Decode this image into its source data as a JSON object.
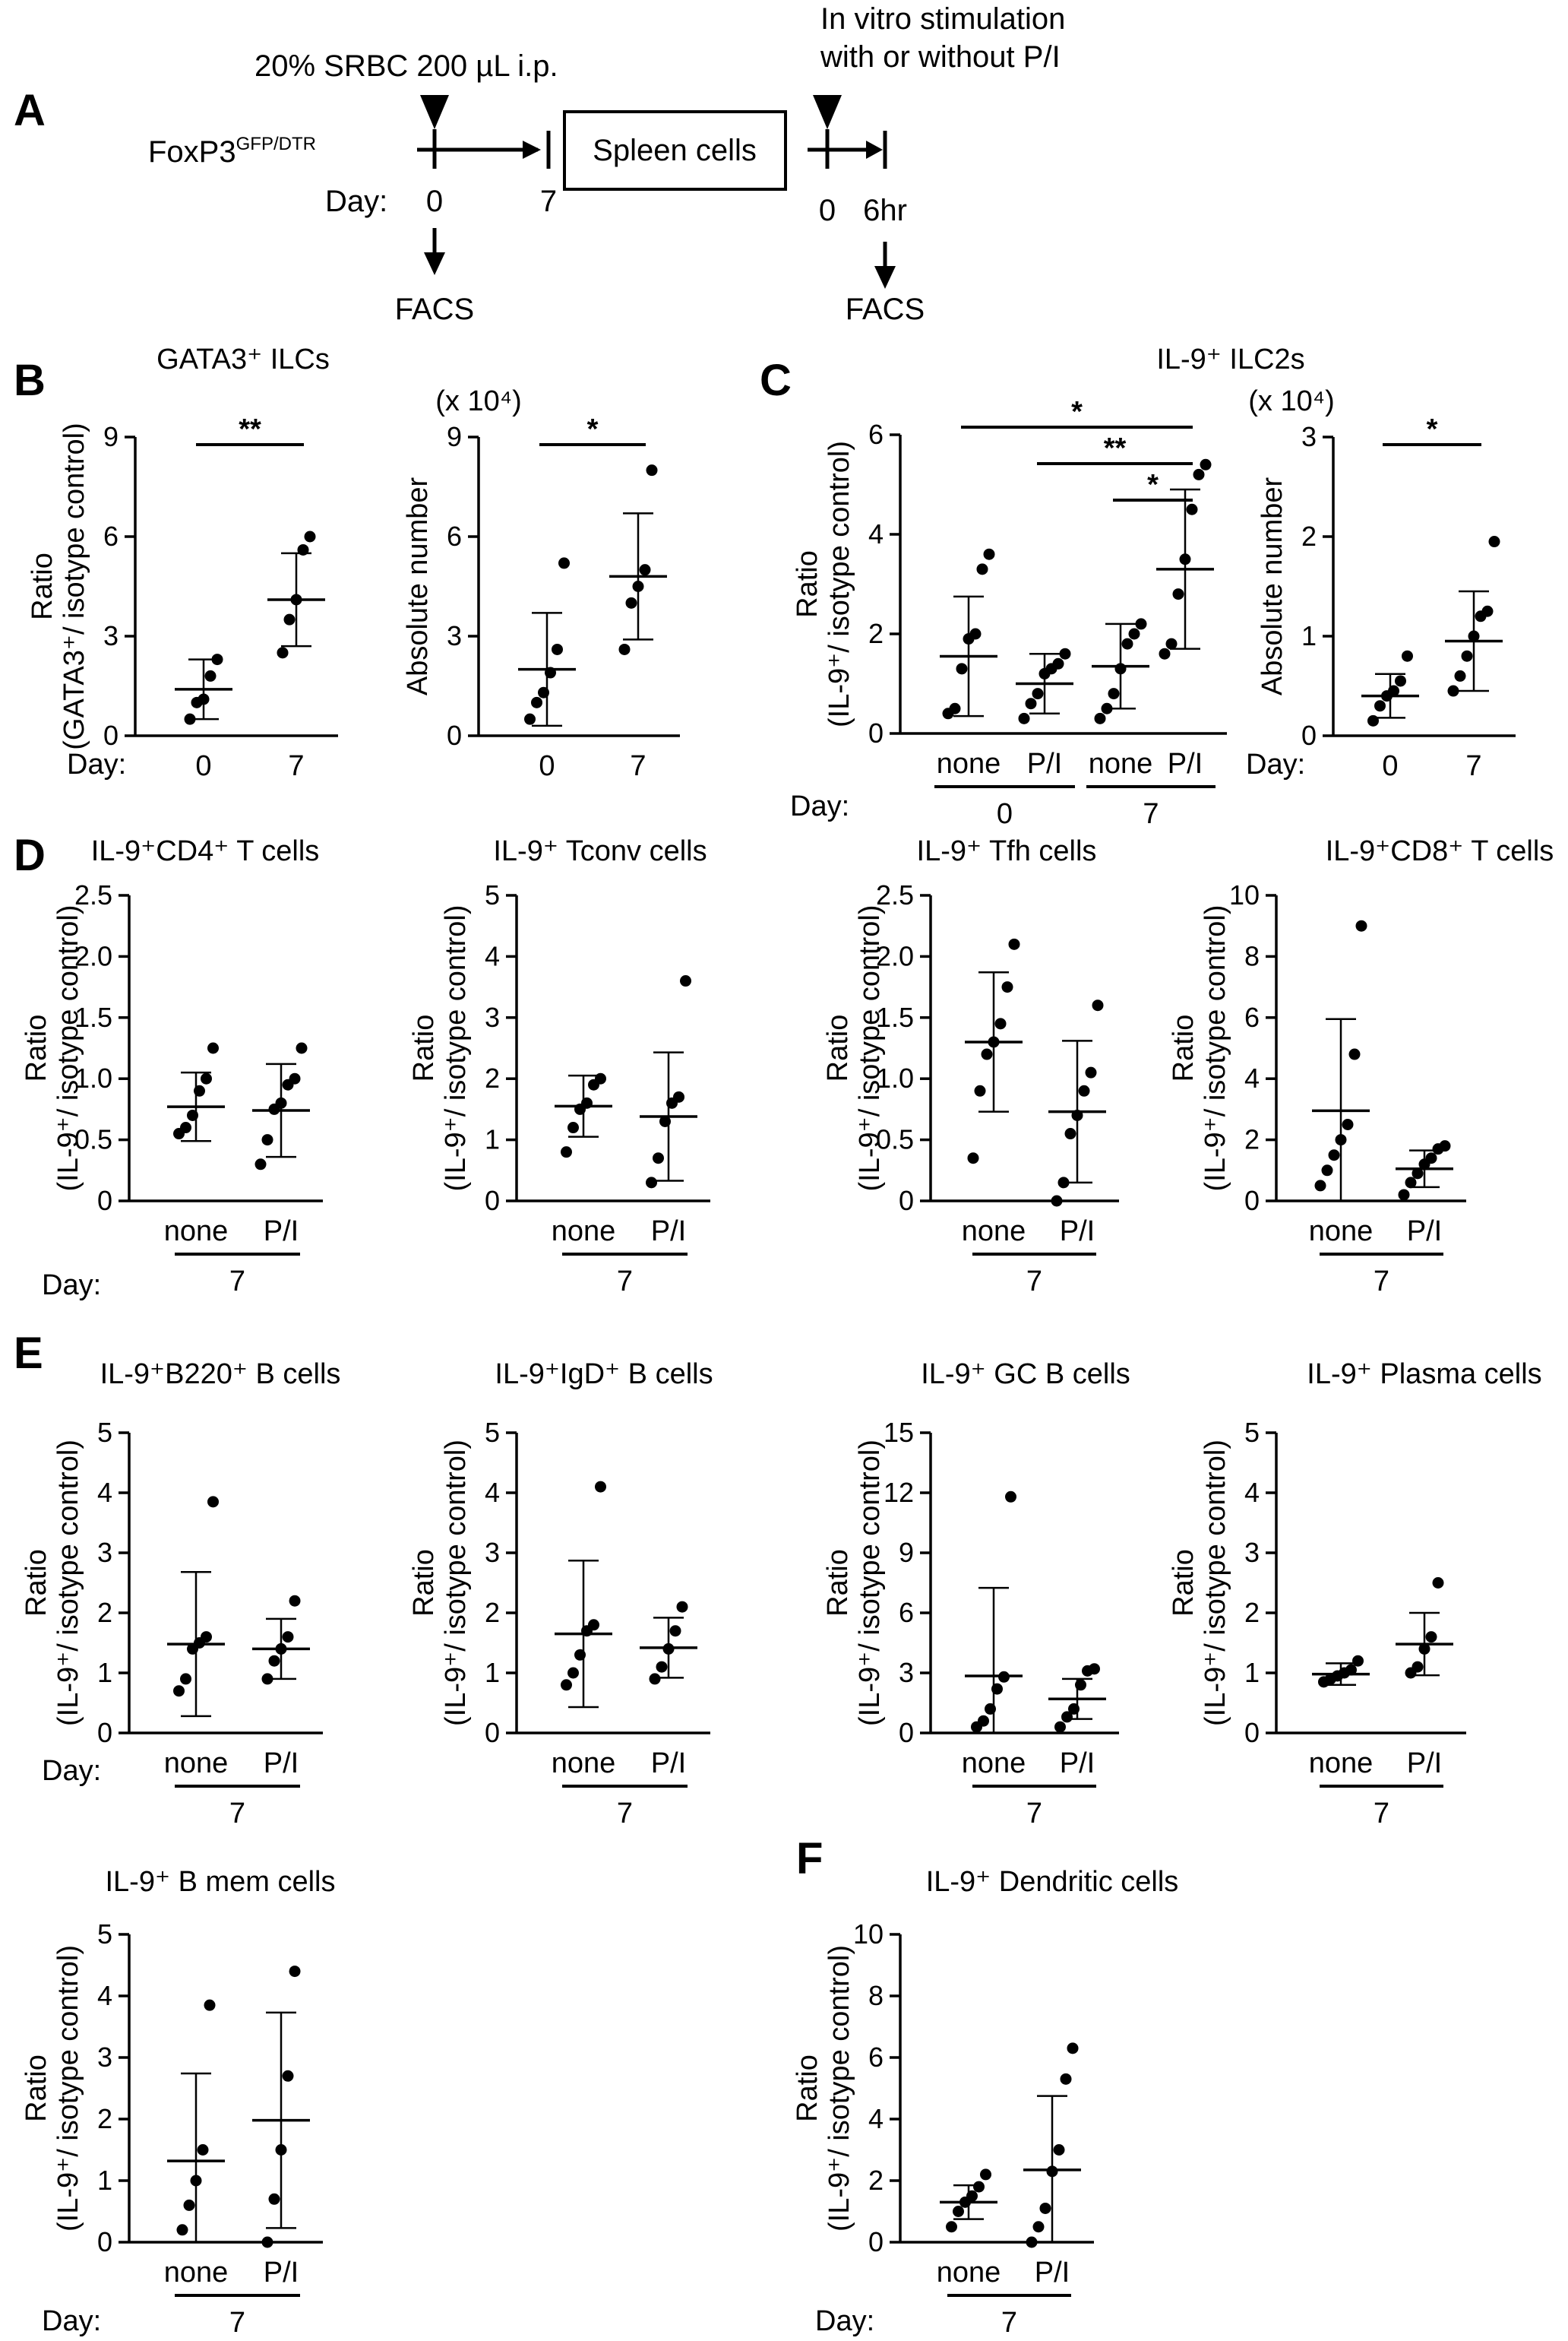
{
  "panel_labels": [
    "A",
    "B",
    "C",
    "D",
    "E",
    "F"
  ],
  "schematic": {
    "injection": "20% SRBC 200 µL i.p.",
    "mouse": "FoxP3",
    "mouse_sup": "GFP/DTR",
    "day_label": "Day:",
    "day_start": "0",
    "day_end": "7",
    "box_label": "Spleen cells",
    "stim_line1": "In vitro stimulation",
    "stim_line2": "with or without P/I",
    "time_start": "0",
    "time_end": "6hr",
    "facs1": "FACS",
    "facs2": "FACS"
  },
  "common": {
    "day_label": "Day:",
    "ratio_word": "Ratio",
    "day7": "7"
  },
  "chart_data": [
    {
      "id": "B1",
      "type": "scatter",
      "title": "GATA3⁺ ILCs",
      "title_shared": true,
      "ylabel": "Ratio",
      "ylabel2": "(GATA3⁺/ isotype control)",
      "ylim": [
        0,
        9
      ],
      "yticks": [
        "0",
        "3",
        "6",
        "9"
      ],
      "categories": [
        "0",
        "7"
      ],
      "points": [
        [
          0.5,
          1.0,
          1.1,
          1.8,
          2.3
        ],
        [
          2.5,
          3.5,
          4.1,
          5.6,
          6.0
        ]
      ],
      "means": [
        1.4,
        4.1
      ],
      "sd": [
        0.9,
        1.4
      ],
      "significance": [
        {
          "from": 0,
          "to": 1,
          "label": "**"
        }
      ]
    },
    {
      "id": "B2",
      "type": "scatter",
      "title": "",
      "multiplier": "(x 10⁴)",
      "ylabel": "Absolute number",
      "ylabel2": "",
      "ylim": [
        0,
        9
      ],
      "yticks": [
        "0",
        "3",
        "6",
        "9"
      ],
      "categories": [
        "0",
        "7"
      ],
      "points": [
        [
          0.5,
          1.0,
          1.3,
          1.9,
          2.6,
          5.2
        ],
        [
          2.6,
          4.0,
          4.5,
          5.0,
          8.0
        ]
      ],
      "means": [
        2.0,
        4.8
      ],
      "sd": [
        1.7,
        1.9
      ],
      "significance": [
        {
          "from": 0,
          "to": 1,
          "label": "*"
        }
      ]
    },
    {
      "id": "C1",
      "type": "scatter",
      "title": "IL-9⁺ ILC2s",
      "ylabel": "Ratio",
      "ylabel2": "(IL-9⁺/ isotype control)",
      "ylim": [
        0,
        6
      ],
      "yticks": [
        "0",
        "2",
        "4",
        "6"
      ],
      "categories": [
        "none",
        "P/I",
        "none",
        "P/I"
      ],
      "groups": [
        {
          "label": "0",
          "from": 0,
          "to": 1
        },
        {
          "label": "7",
          "from": 2,
          "to": 3
        }
      ],
      "points": [
        [
          0.4,
          0.5,
          1.3,
          1.9,
          2.0,
          3.3,
          3.6
        ],
        [
          0.3,
          0.6,
          0.8,
          1.2,
          1.3,
          1.4,
          1.6
        ],
        [
          0.3,
          0.5,
          0.8,
          1.3,
          1.8,
          2.0,
          2.2
        ],
        [
          1.6,
          1.8,
          2.8,
          3.5,
          4.5,
          5.2,
          5.4
        ]
      ],
      "means": [
        1.55,
        1.0,
        1.35,
        3.3
      ],
      "sd": [
        1.2,
        0.6,
        0.85,
        1.6
      ],
      "significance": [
        {
          "from": 0,
          "to": 3,
          "label": "*"
        },
        {
          "from": 1,
          "to": 3,
          "label": "**"
        },
        {
          "from": 2,
          "to": 3,
          "label": "*"
        }
      ]
    },
    {
      "id": "C2",
      "type": "scatter",
      "title": "",
      "multiplier": "(x 10⁴)",
      "ylabel": "Absolute number",
      "ylabel2": "",
      "ylim": [
        0,
        3
      ],
      "yticks": [
        "0",
        "1",
        "2",
        "3"
      ],
      "categories": [
        "0",
        "7"
      ],
      "points": [
        [
          0.15,
          0.3,
          0.4,
          0.45,
          0.55,
          0.8
        ],
        [
          0.45,
          0.6,
          0.8,
          1.0,
          1.2,
          1.25,
          1.95
        ]
      ],
      "means": [
        0.4,
        0.95
      ],
      "sd": [
        0.22,
        0.5
      ],
      "significance": [
        {
          "from": 0,
          "to": 1,
          "label": "*"
        }
      ]
    },
    {
      "id": "D1",
      "type": "scatter",
      "title": "IL-9⁺CD4⁺ T cells",
      "ylabel": "Ratio",
      "ylabel2": "(IL-9⁺/ isotype control)",
      "ylim": [
        0,
        2.5
      ],
      "yticks": [
        "0",
        "0.5",
        "1.0",
        "1.5",
        "2.0",
        "2.5"
      ],
      "categories": [
        "none",
        "P/I"
      ],
      "points": [
        [
          0.55,
          0.6,
          0.7,
          0.9,
          1.0,
          1.25
        ],
        [
          0.3,
          0.5,
          0.75,
          0.8,
          0.95,
          1.0,
          1.25
        ]
      ],
      "means": [
        0.77,
        0.74
      ],
      "sd": [
        0.28,
        0.38
      ]
    },
    {
      "id": "D2",
      "type": "scatter",
      "title": "IL-9⁺ Tconv cells",
      "ylabel": "Ratio",
      "ylabel2": "(IL-9⁺/ isotype control)",
      "ylim": [
        0,
        5
      ],
      "yticks": [
        "0",
        "1",
        "2",
        "3",
        "4",
        "5"
      ],
      "categories": [
        "none",
        "P/I"
      ],
      "points": [
        [
          0.8,
          1.2,
          1.5,
          1.6,
          1.9,
          2.0
        ],
        [
          0.3,
          0.7,
          1.3,
          1.6,
          1.7,
          3.6
        ]
      ],
      "means": [
        1.55,
        1.38
      ],
      "sd": [
        0.5,
        1.05
      ]
    },
    {
      "id": "D3",
      "type": "scatter",
      "title": "IL-9⁺ Tfh cells",
      "ylabel": "Ratio",
      "ylabel2": "(IL-9⁺/ isotype control)",
      "ylim": [
        0,
        2.5
      ],
      "yticks": [
        "0",
        "0.5",
        "1.0",
        "1.5",
        "2.0",
        "2.5"
      ],
      "categories": [
        "none",
        "P/I"
      ],
      "points": [
        [
          0.35,
          0.9,
          1.2,
          1.3,
          1.45,
          1.75,
          2.1
        ],
        [
          0.0,
          0.15,
          0.55,
          0.7,
          0.9,
          1.05,
          1.6
        ]
      ],
      "means": [
        1.3,
        0.73
      ],
      "sd": [
        0.57,
        0.58
      ]
    },
    {
      "id": "D4",
      "type": "scatter",
      "title": "IL-9⁺CD8⁺ T cells",
      "ylabel": "Ratio",
      "ylabel2": "(IL-9⁺/ isotype control)",
      "ylim": [
        0,
        10
      ],
      "yticks": [
        "0",
        "2",
        "4",
        "6",
        "8",
        "10"
      ],
      "categories": [
        "none",
        "P/I"
      ],
      "points": [
        [
          0.5,
          1.0,
          1.5,
          2.0,
          2.5,
          4.8,
          9.0
        ],
        [
          0.2,
          0.6,
          0.9,
          1.2,
          1.4,
          1.7,
          1.8
        ]
      ],
      "means": [
        2.95,
        1.05
      ],
      "sd": [
        3.0,
        0.6
      ]
    },
    {
      "id": "E1",
      "type": "scatter",
      "title": "IL-9⁺B220⁺ B cells",
      "ylabel": "Ratio",
      "ylabel2": "(IL-9⁺/ isotype control)",
      "ylim": [
        0,
        5
      ],
      "yticks": [
        "0",
        "1",
        "2",
        "3",
        "4",
        "5"
      ],
      "categories": [
        "none",
        "P/I"
      ],
      "points": [
        [
          0.7,
          0.9,
          1.4,
          1.5,
          1.6,
          3.85
        ],
        [
          0.9,
          1.2,
          1.4,
          1.6,
          2.2
        ]
      ],
      "means": [
        1.48,
        1.4
      ],
      "sd": [
        1.2,
        0.5
      ]
    },
    {
      "id": "E2",
      "type": "scatter",
      "title": "IL-9⁺IgD⁺ B cells",
      "ylabel": "Ratio",
      "ylabel2": "(IL-9⁺/ isotype control)",
      "ylim": [
        0,
        5
      ],
      "yticks": [
        "0",
        "1",
        "2",
        "3",
        "4",
        "5"
      ],
      "categories": [
        "none",
        "P/I"
      ],
      "points": [
        [
          0.8,
          1.0,
          1.3,
          1.7,
          1.8,
          4.1
        ],
        [
          0.9,
          1.1,
          1.4,
          1.7,
          2.1
        ]
      ],
      "means": [
        1.65,
        1.42
      ],
      "sd": [
        1.22,
        0.5
      ]
    },
    {
      "id": "E3",
      "type": "scatter",
      "title": "IL-9⁺ GC B cells",
      "ylabel": "Ratio",
      "ylabel2": "(IL-9⁺/ isotype control)",
      "ylim": [
        0,
        15
      ],
      "yticks": [
        "0",
        "3",
        "6",
        "9",
        "12",
        "15"
      ],
      "categories": [
        "none",
        "P/I"
      ],
      "points": [
        [
          0.3,
          0.6,
          1.2,
          2.2,
          2.8,
          11.8
        ],
        [
          0.3,
          0.8,
          1.2,
          2.4,
          3.1,
          3.2
        ]
      ],
      "means": [
        2.85,
        1.7
      ],
      "sd": [
        4.4,
        1.0
      ]
    },
    {
      "id": "E4",
      "type": "scatter",
      "title": "IL-9⁺ Plasma cells",
      "ylabel": "Ratio",
      "ylabel2": "(IL-9⁺/ isotype control)",
      "ylim": [
        0,
        5
      ],
      "yticks": [
        "0",
        "1",
        "2",
        "3",
        "4",
        "5"
      ],
      "categories": [
        "none",
        "P/I"
      ],
      "points": [
        [
          0.85,
          0.9,
          0.95,
          1.0,
          1.05,
          1.2
        ],
        [
          1.0,
          1.1,
          1.4,
          1.6,
          2.5
        ]
      ],
      "means": [
        0.98,
        1.48
      ],
      "sd": [
        0.18,
        0.52
      ]
    },
    {
      "id": "E5",
      "type": "scatter",
      "title": "IL-9⁺ B mem cells",
      "ylabel": "Ratio",
      "ylabel2": "(IL-9⁺/ isotype control)",
      "ylim": [
        0,
        5
      ],
      "yticks": [
        "0",
        "1",
        "2",
        "3",
        "4",
        "5"
      ],
      "categories": [
        "none",
        "P/I"
      ],
      "points": [
        [
          0.2,
          0.6,
          1.0,
          1.5,
          3.85
        ],
        [
          0.0,
          0.7,
          1.5,
          2.7,
          4.4
        ]
      ],
      "means": [
        1.32,
        1.98
      ],
      "sd": [
        1.42,
        1.75
      ]
    },
    {
      "id": "F1",
      "type": "scatter",
      "title": "IL-9⁺ Dendritic cells",
      "ylabel": "Ratio",
      "ylabel2": "(IL-9⁺/ isotype control)",
      "ylim": [
        0,
        10
      ],
      "yticks": [
        "0",
        "2",
        "4",
        "6",
        "8",
        "10"
      ],
      "categories": [
        "none",
        "P/I"
      ],
      "points": [
        [
          0.5,
          1.0,
          1.3,
          1.5,
          1.8,
          2.2
        ],
        [
          0.0,
          0.5,
          1.1,
          2.3,
          3.0,
          5.3,
          6.3
        ]
      ],
      "means": [
        1.3,
        2.35
      ],
      "sd": [
        0.55,
        2.4
      ]
    }
  ]
}
